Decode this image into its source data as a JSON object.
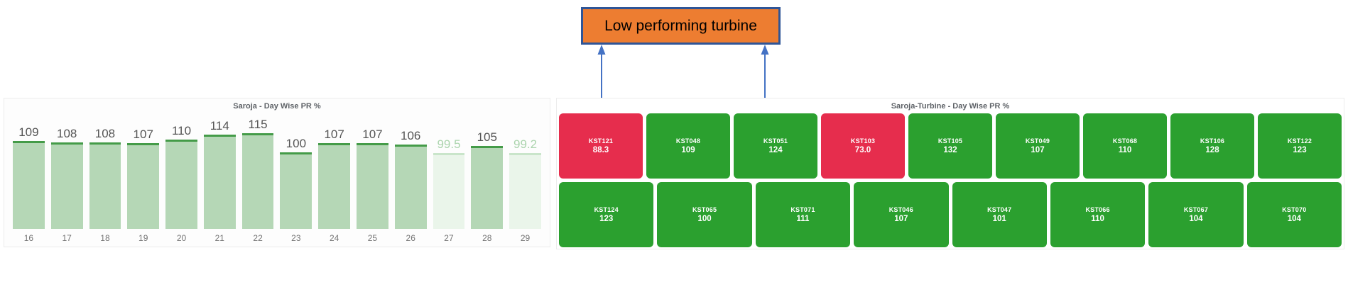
{
  "annotation": {
    "label": "Low performing turbine",
    "box_fill": "#ED7D31",
    "box_border": "#2F5597",
    "arrow_color": "#4472C4",
    "text_color": "#000000"
  },
  "chart_data": [
    {
      "type": "bar",
      "title": "Saroja - Day Wise PR %",
      "categories": [
        "16",
        "17",
        "18",
        "19",
        "20",
        "21",
        "22",
        "23",
        "24",
        "25",
        "26",
        "27",
        "28",
        "29"
      ],
      "values": [
        109,
        108,
        108,
        107,
        110,
        114,
        115,
        100,
        107,
        107,
        106,
        99.5,
        105,
        99.2
      ],
      "value_labels": [
        "109",
        "108",
        "108",
        "107",
        "110",
        "114",
        "115",
        "100",
        "107",
        "107",
        "106",
        "99.5",
        "105",
        "99.2"
      ],
      "xlabel": "",
      "ylabel": "",
      "ylim": [
        40,
        125
      ],
      "grid": false,
      "legend": "none",
      "pale_below": 100,
      "colors": {
        "bar_fill": "#b5d7b6",
        "bar_top": "#449b48",
        "pale_fill": "#eaf5ea",
        "pale_top": "#c9e5ca",
        "value_label": "#545454",
        "value_label_pale": "#abd4ad",
        "axis_label": "#757575",
        "title": "#5f6368"
      }
    },
    {
      "type": "heatmap",
      "variant": "treemap",
      "title": "Saroja-Turbine - Day Wise PR %",
      "legend": "none",
      "low_color": "#E62D4D",
      "ok_color": "#2BA02F",
      "rows": [
        [
          {
            "id": "KST121",
            "value": 88.3,
            "label": "88.3",
            "color": "#E62D4D"
          },
          {
            "id": "KST048",
            "value": 109,
            "label": "109",
            "color": "#2BA02F"
          },
          {
            "id": "KST051",
            "value": 124,
            "label": "124",
            "color": "#2BA02F"
          },
          {
            "id": "KST103",
            "value": 73.0,
            "label": "73.0",
            "color": "#E62D4D"
          },
          {
            "id": "KST105",
            "value": 132,
            "label": "132",
            "color": "#2BA02F"
          },
          {
            "id": "KST049",
            "value": 107,
            "label": "107",
            "color": "#2BA02F"
          },
          {
            "id": "KST068",
            "value": 110,
            "label": "110",
            "color": "#2BA02F"
          },
          {
            "id": "KST106",
            "value": 128,
            "label": "128",
            "color": "#2BA02F"
          },
          {
            "id": "KST122",
            "value": 123,
            "label": "123",
            "color": "#2BA02F"
          }
        ],
        [
          {
            "id": "KST124",
            "value": 123,
            "label": "123",
            "color": "#2BA02F"
          },
          {
            "id": "KST065",
            "value": 100,
            "label": "100",
            "color": "#2BA02F"
          },
          {
            "id": "KST071",
            "value": 111,
            "label": "111",
            "color": "#2BA02F"
          },
          {
            "id": "KST046",
            "value": 107,
            "label": "107",
            "color": "#2BA02F"
          },
          {
            "id": "KST047",
            "value": 101,
            "label": "101",
            "color": "#2BA02F"
          },
          {
            "id": "KST066",
            "value": 110,
            "label": "110",
            "color": "#2BA02F"
          },
          {
            "id": "KST067",
            "value": 104,
            "label": "104",
            "color": "#2BA02F"
          },
          {
            "id": "KST070",
            "value": 104,
            "label": "104",
            "color": "#2BA02F"
          }
        ]
      ]
    }
  ]
}
